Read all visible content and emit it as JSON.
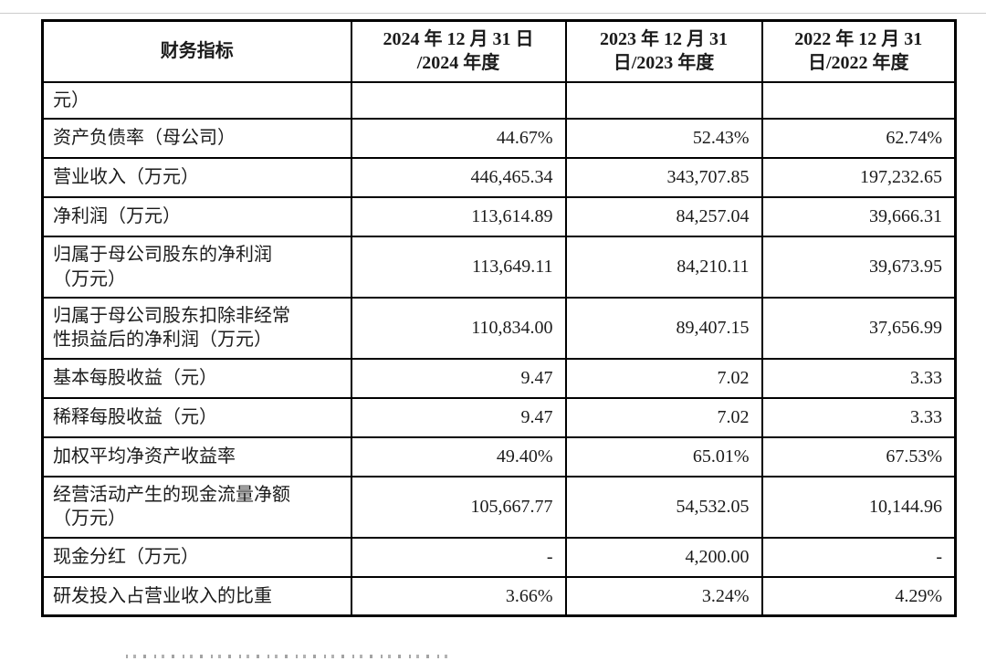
{
  "table": {
    "header": [
      {
        "line1": "财务指标",
        "line2": ""
      },
      {
        "line1": "2024 年 12 月 31 日",
        "line2": "/2024 年度"
      },
      {
        "line1": "2023 年 12 月 31",
        "line2": "日/2023 年度"
      },
      {
        "line1": "2022 年 12 月 31",
        "line2": "日/2022 年度"
      }
    ],
    "rows": [
      {
        "label": "元）",
        "values": [
          "",
          "",
          ""
        ]
      },
      {
        "label": "资产负债率（母公司）",
        "values": [
          "44.67%",
          "52.43%",
          "62.74%"
        ]
      },
      {
        "label": "营业收入（万元）",
        "values": [
          "446,465.34",
          "343,707.85",
          "197,232.65"
        ]
      },
      {
        "label": "净利润（万元）",
        "values": [
          "113,614.89",
          "84,257.04",
          "39,666.31"
        ]
      },
      {
        "label": "归属于母公司股东的净利润\n（万元）",
        "values": [
          "113,649.11",
          "84,210.11",
          "39,673.95"
        ]
      },
      {
        "label": "归属于母公司股东扣除非经常\n性损益后的净利润（万元）",
        "values": [
          "110,834.00",
          "89,407.15",
          "37,656.99"
        ]
      },
      {
        "label": "基本每股收益（元）",
        "values": [
          "9.47",
          "7.02",
          "3.33"
        ]
      },
      {
        "label": "稀释每股收益（元）",
        "values": [
          "9.47",
          "7.02",
          "3.33"
        ]
      },
      {
        "label": "加权平均净资产收益率",
        "values": [
          "49.40%",
          "65.01%",
          "67.53%"
        ]
      },
      {
        "label": "经营活动产生的现金流量净额\n（万元）",
        "values": [
          "105,667.77",
          "54,532.05",
          "10,144.96"
        ]
      },
      {
        "label": "现金分红（万元）",
        "values": [
          "-",
          "4,200.00",
          "-"
        ]
      },
      {
        "label": "研发投入占营业收入的比重",
        "values": [
          "3.66%",
          "3.24%",
          "4.29%"
        ]
      }
    ]
  }
}
